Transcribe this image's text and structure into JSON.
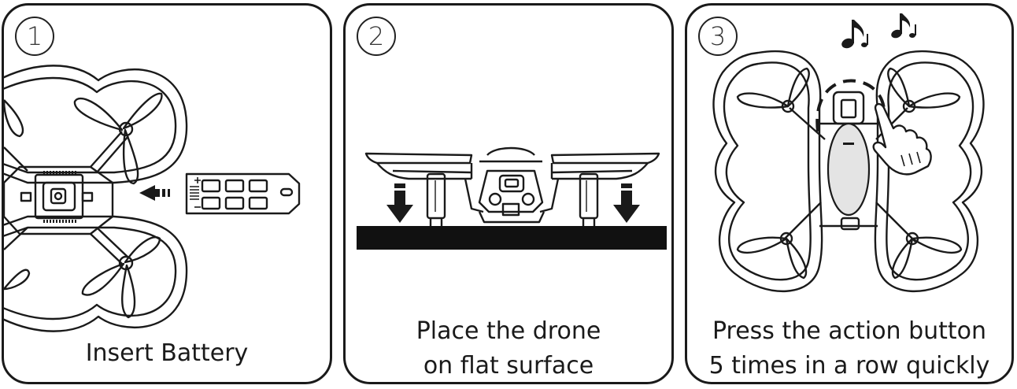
{
  "steps": [
    {
      "number": "1",
      "caption_lines": [
        "Insert Battery"
      ]
    },
    {
      "number": "2",
      "caption_lines": [
        "Place the drone",
        "on flat surface"
      ]
    },
    {
      "number": "3",
      "caption_lines": [
        "Press the action button",
        "5 times in a row quickly"
      ]
    }
  ],
  "colors": {
    "line": "#1a1a1a",
    "button_fill": "#e4e4e4",
    "surface": "#111111"
  }
}
